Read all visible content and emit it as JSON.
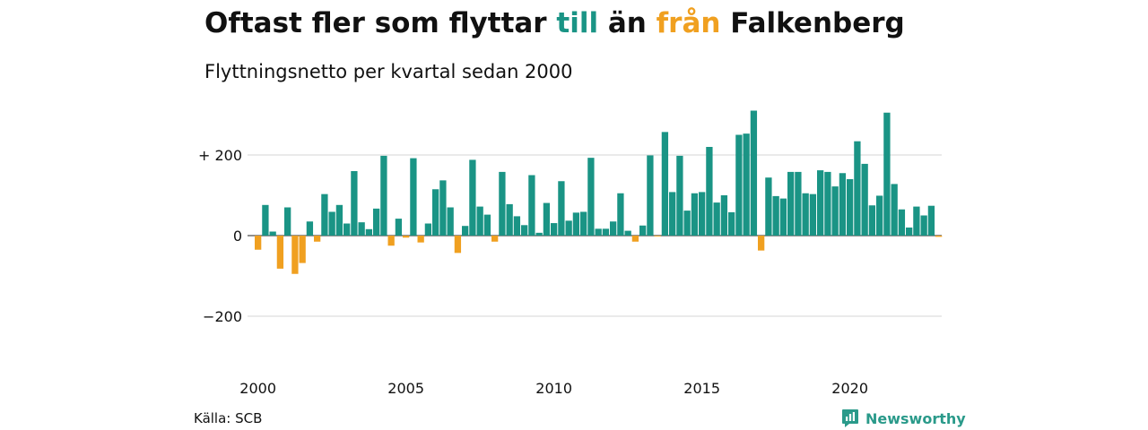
{
  "title": {
    "part1": "Oftast fler som flyttar ",
    "till": "till",
    "part2": " än ",
    "fran": "från",
    "part3": " Falkenberg"
  },
  "subtitle": "Flyttningsnetto per kvartal sedan 2000",
  "source": "Källa: SCB",
  "brand": "Newsworthy",
  "colors": {
    "positive": "#1a9485",
    "negative": "#f0a020",
    "grid": "#dddddd",
    "zero_line": "#222222"
  },
  "chart_data": {
    "type": "bar",
    "title": "Oftast fler som flyttar till än från Falkenberg",
    "subtitle": "Flyttningsnetto per kvartal sedan 2000",
    "x_start_year": 2000,
    "periods_per_year": 4,
    "x_ticks": [
      "2000",
      "2005",
      "2010",
      "2015",
      "2020"
    ],
    "y_ticks": [
      {
        "value": 200,
        "label": "+ 200"
      },
      {
        "value": 0,
        "label": "0"
      },
      {
        "value": -200,
        "label": "−200"
      }
    ],
    "ylim": [
      -300,
      320
    ],
    "grid": true,
    "values": [
      -35,
      76,
      10,
      -82,
      70,
      -95,
      -68,
      35,
      -15,
      103,
      59,
      76,
      30,
      160,
      33,
      16,
      67,
      198,
      -25,
      42,
      -5,
      192,
      -17,
      30,
      115,
      137,
      70,
      -43,
      24,
      188,
      72,
      52,
      -15,
      158,
      78,
      48,
      26,
      150,
      7,
      81,
      31,
      135,
      37,
      57,
      59,
      193,
      17,
      17,
      35,
      105,
      12,
      -15,
      25,
      199,
      -2,
      257,
      108,
      198,
      62,
      105,
      108,
      220,
      82,
      100,
      58,
      250,
      253,
      310,
      -37,
      144,
      98,
      92,
      158,
      158,
      105,
      103,
      162,
      158,
      122,
      155,
      140,
      234,
      178,
      75,
      99,
      305,
      128,
      65,
      20,
      72,
      50,
      74,
      -3
    ]
  }
}
